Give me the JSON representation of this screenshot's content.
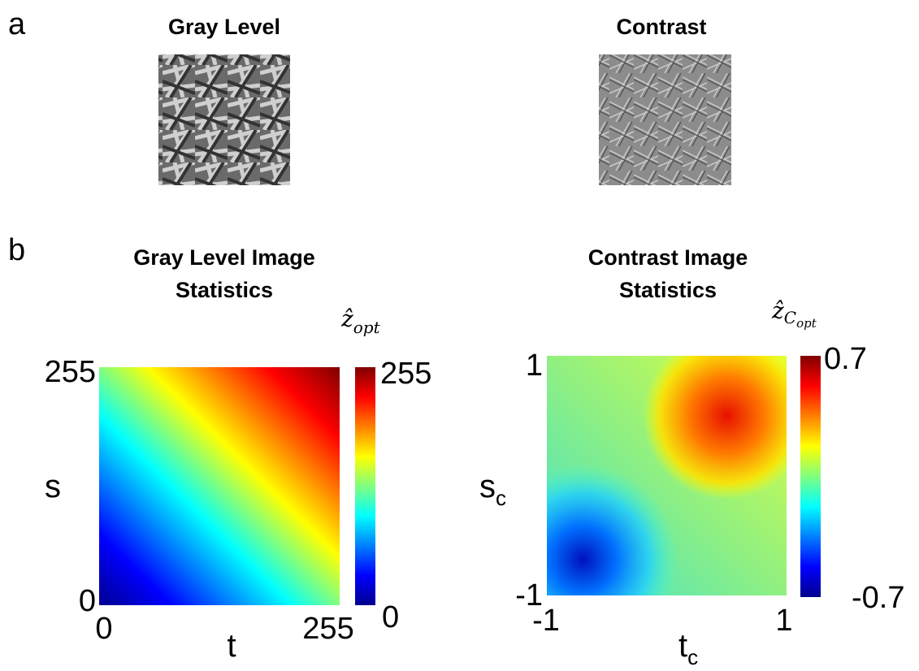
{
  "panel_a": {
    "label": "a",
    "images": [
      {
        "title": "Gray Level"
      },
      {
        "title": "Contrast"
      }
    ]
  },
  "panel_b": {
    "label": "b",
    "plots": [
      {
        "title": [
          "Gray Level Image",
          "Statistics"
        ],
        "x_axis": {
          "label": "t",
          "ticks": [
            "0",
            "255"
          ]
        },
        "y_axis": {
          "label": "s",
          "ticks": [
            "0",
            "255"
          ]
        },
        "colorbar": {
          "label": {
            "base": "ẑ",
            "sub": "opt"
          },
          "ticks": [
            "0",
            "255"
          ]
        }
      },
      {
        "title": [
          "Contrast Image",
          "Statistics"
        ],
        "x_axis": {
          "label": {
            "base": "t",
            "sub": "c"
          },
          "ticks": [
            "-1",
            "1"
          ]
        },
        "y_axis": {
          "label": {
            "base": "s",
            "sub": "c"
          },
          "ticks": [
            "-1",
            "1"
          ]
        },
        "colorbar": {
          "label": {
            "base": "ẑ",
            "sub": "C",
            "subsub": "opt"
          },
          "ticks": [
            "-0.7",
            "0.7"
          ]
        }
      }
    ]
  }
}
